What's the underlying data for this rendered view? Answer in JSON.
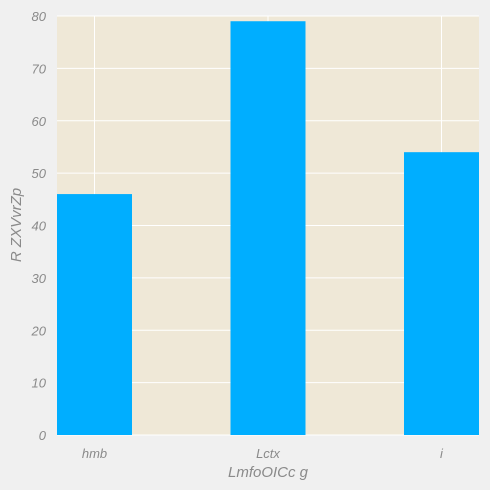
{
  "chart_data": {
    "type": "bar",
    "categories": [
      "hmb",
      "Lctx",
      "i"
    ],
    "values": [
      46,
      79,
      54
    ],
    "title": "",
    "xlabel": "LmfoOICc g",
    "ylabel": "R ZXVvrZp",
    "ylim": [
      0,
      80
    ],
    "yticks": [
      0,
      10,
      20,
      30,
      40,
      50,
      60,
      70,
      80
    ],
    "grid": true,
    "colors": {
      "bar": "#00aeff",
      "plot_background": "#efe8d7",
      "grid": "#ffffff",
      "text": "#8a8a8a",
      "figure_background": "#f0f0f0"
    }
  }
}
